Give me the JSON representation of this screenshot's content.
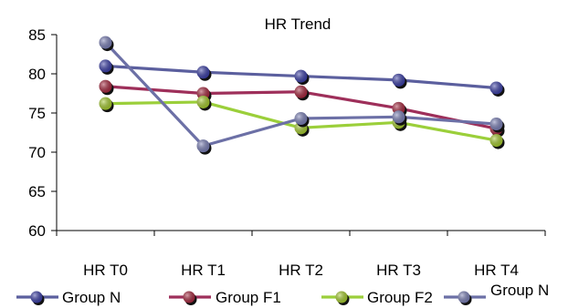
{
  "chart_data": {
    "type": "line",
    "title": "HR Trend",
    "xlabel": "",
    "ylabel": "",
    "categories": [
      "HR T0",
      "HR T1",
      "HR T2",
      "HR T3",
      "HR T4"
    ],
    "ylim": [
      60,
      85
    ],
    "yticks": [
      60,
      65,
      70,
      75,
      80,
      85
    ],
    "grid": false,
    "legend_position": "bottom",
    "series": [
      {
        "name": "Group N",
        "values": [
          81.0,
          80.2,
          79.7,
          79.2,
          78.2
        ],
        "color": "#5b5f9e",
        "marker_color": "#3b3fa8",
        "marker": true
      },
      {
        "name": "Group F1",
        "values": [
          78.4,
          77.5,
          77.7,
          75.6,
          73.0
        ],
        "color": "#9e2f5a",
        "marker_color": "#a8283f",
        "marker": true
      },
      {
        "name": "Group F2",
        "values": [
          76.2,
          76.4,
          73.1,
          73.8,
          71.5
        ],
        "color": "#9bcf3a",
        "marker_color": "#a6cc2e",
        "marker": true
      },
      {
        "name": "Group N",
        "values": [
          84.0,
          70.8,
          74.3,
          74.5,
          73.6
        ],
        "color": "#6c70a6",
        "marker_color": "#7b80b8",
        "marker": true
      }
    ]
  }
}
